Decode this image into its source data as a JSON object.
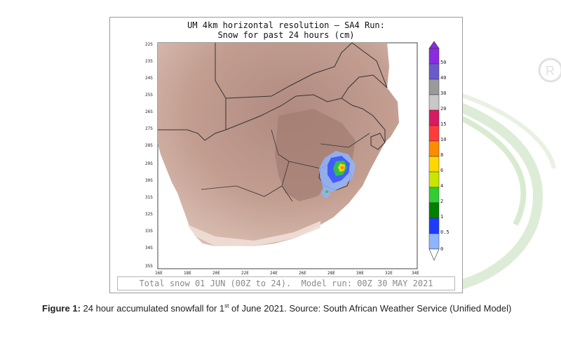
{
  "figure": {
    "title_line1": "UM 4km horizontal resolution – SA4 Run:",
    "title_line2": "Snow for past 24 hours (cm)",
    "bottom_caption": "Total snow 01 JUN (00Z to 24).  Model run: 00Z 30 MAY 2021",
    "lat_labels": [
      "22S",
      "23S",
      "24S",
      "25S",
      "26S",
      "27S",
      "28S",
      "29S",
      "30S",
      "31S",
      "32S",
      "33S",
      "34S",
      "35S"
    ],
    "lon_labels": [
      "16E",
      "18E",
      "20E",
      "22E",
      "24E",
      "26E",
      "28E",
      "30E",
      "32E",
      "34E"
    ],
    "colorbar": {
      "labels": [
        "50",
        "40",
        "30",
        "20",
        "15",
        "10",
        "8",
        "6",
        "4",
        "2",
        "1",
        "0.5",
        "0"
      ],
      "colors": [
        "#8a2be2",
        "#6a5acd",
        "#9a9a9a",
        "#c8c8c8",
        "#d81b60",
        "#ff3b3b",
        "#ff8c00",
        "#ffd700",
        "#c8e600",
        "#32cd32",
        "#008000",
        "#1e3cff",
        "#8fb4ff"
      ]
    },
    "colors": {
      "terrain_low": "#eedfd6",
      "terrain_mid": "#c9a699",
      "terrain_high": "#a07a70",
      "border": "#333333"
    }
  },
  "caption": {
    "label": "Figure 1:",
    "text_before_sup": " 24 hour accumulated snowfall for 1",
    "sup": "st",
    "text_after_sup": " of June 2021. Source: South African Weather Service (Unified Model)"
  }
}
